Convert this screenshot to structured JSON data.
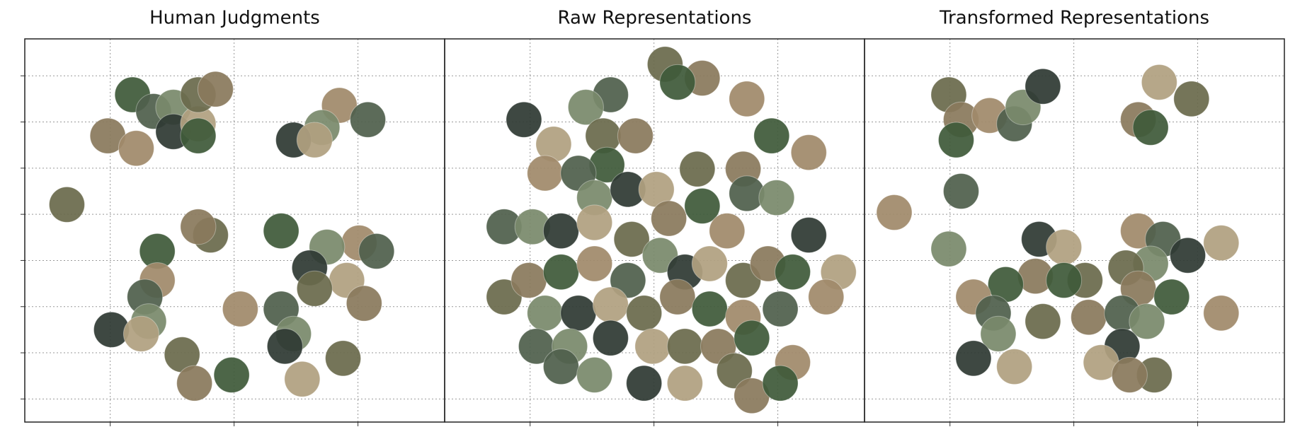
{
  "chart_data": [
    {
      "type": "scatter",
      "title": "Human Judgments",
      "xlim": [
        -0.69,
        2.7
      ],
      "ylim": [
        -0.5,
        7.8
      ],
      "xticks": [
        0,
        1,
        2
      ],
      "yticks": [
        0,
        1,
        2,
        3,
        4,
        5,
        6,
        7
      ],
      "grid": true,
      "colors": [
        "#6b6a4c",
        "#8a7a5c",
        "#3f5a3a",
        "#a08a6a",
        "#50604c",
        "#7a8a6c",
        "#2f3a34",
        "#b0a080"
      ],
      "x": [
        -0.35,
        -0.02,
        0.18,
        0.21,
        0.35,
        0.51,
        0.51,
        0.71,
        0.71,
        0.85,
        0.71,
        1.85,
        2.08,
        1.71,
        1.48,
        1.65,
        0.81,
        0.71,
        1.38,
        2.01,
        2.15,
        1.75,
        1.61,
        1.91,
        1.65,
        2.05,
        0.38,
        0.38,
        0.28,
        0.31,
        0.01,
        0.25,
        0.58,
        0.68,
        0.98,
        1.05,
        1.38,
        1.48,
        1.41,
        1.55,
        1.88
      ],
      "y": [
        4.21,
        5.7,
        6.59,
        5.43,
        6.23,
        6.32,
        5.79,
        5.96,
        6.59,
        6.71,
        5.7,
        6.36,
        6.05,
        5.88,
        5.61,
        5.61,
        3.55,
        3.73,
        3.64,
        3.38,
        3.2,
        3.29,
        2.84,
        2.57,
        2.39,
        2.07,
        3.2,
        2.57,
        2.21,
        1.68,
        1.5,
        1.41,
        0.96,
        0.34,
        0.52,
        1.95,
        1.95,
        1.41,
        1.14,
        0.43,
        0.88
      ]
    },
    {
      "type": "scatter",
      "title": "Raw Representations",
      "xlim": [
        -0.69,
        2.7
      ],
      "ylim": [
        -0.5,
        7.8
      ],
      "xticks": [
        0,
        1,
        2
      ],
      "yticks": [
        0,
        1,
        2,
        3,
        4,
        5,
        6,
        7
      ],
      "grid": true,
      "colors": [
        "#6b6a4c",
        "#8a7a5c",
        "#3f5a3a",
        "#a08a6a",
        "#50604c",
        "#7a8a6c",
        "#2f3a34",
        "#b0a080"
      ],
      "x": [
        1.09,
        1.39,
        1.19,
        1.75,
        0.65,
        0.45,
        -0.05,
        0.19,
        0.59,
        0.85,
        0.62,
        0.12,
        0.39,
        0.52,
        0.79,
        1.02,
        1.35,
        1.72,
        1.95,
        2.25,
        -0.21,
        0.02,
        0.25,
        0.52,
        0.82,
        1.12,
        1.39,
        1.59,
        1.75,
        1.99,
        2.25,
        2.49,
        -0.21,
        -0.01,
        0.25,
        0.52,
        0.79,
        1.05,
        1.25,
        1.45,
        1.72,
        1.92,
        2.12,
        2.39,
        2.02,
        0.12,
        0.39,
        0.65,
        0.92,
        1.19,
        1.45,
        1.72,
        0.05,
        0.32,
        0.65,
        0.99,
        1.25,
        1.52,
        1.79,
        2.12,
        0.25,
        0.52,
        0.92,
        1.25,
        1.65,
        1.79,
        2.02
      ],
      "y": [
        7.25,
        6.95,
        6.86,
        6.5,
        6.59,
        6.32,
        6.05,
        5.52,
        5.7,
        5.7,
        5.07,
        4.89,
        4.89,
        4.36,
        4.54,
        4.54,
        4.98,
        4.98,
        5.7,
        5.34,
        3.73,
        3.73,
        3.64,
        3.82,
        3.46,
        3.91,
        4.18,
        3.64,
        4.45,
        4.36,
        3.55,
        2.75,
        2.21,
        2.57,
        2.75,
        2.93,
        2.57,
        3.11,
        2.75,
        2.93,
        2.57,
        2.93,
        2.75,
        2.21,
        1.95,
        1.86,
        1.86,
        2.04,
        1.86,
        2.21,
        1.95,
        1.77,
        1.14,
        1.14,
        1.32,
        1.14,
        1.14,
        1.14,
        1.32,
        0.79,
        0.7,
        0.52,
        0.34,
        0.34,
        0.61,
        0.07,
        0.34
      ]
    },
    {
      "type": "scatter",
      "title": "Transformed Representations",
      "xlim": [
        -0.69,
        2.7
      ],
      "ylim": [
        -0.5,
        7.8
      ],
      "xticks": [
        0,
        1,
        2
      ],
      "yticks": [
        0,
        1,
        2,
        3,
        4,
        5,
        6,
        7
      ],
      "grid": true,
      "colors": [
        "#6b6a4c",
        "#8a7a5c",
        "#3f5a3a",
        "#a08a6a",
        "#50604c",
        "#7a8a6c",
        "#2f3a34",
        "#b0a080"
      ],
      "x": [
        -0.01,
        0.09,
        0.05,
        0.32,
        0.52,
        0.59,
        0.75,
        1.69,
        1.95,
        1.52,
        1.62,
        -0.45,
        0.09,
        -0.01,
        0.72,
        0.92,
        1.09,
        0.69,
        0.45,
        0.19,
        0.35,
        0.39,
        0.19,
        0.52,
        0.75,
        1.12,
        0.92,
        1.52,
        1.72,
        1.62,
        1.92,
        2.19,
        1.42,
        1.52,
        1.79,
        2.19,
        1.39,
        1.59,
        1.39,
        1.22,
        1.65,
        1.45
      ],
      "y": [
        6.59,
        6.05,
        5.61,
        6.14,
        5.96,
        6.32,
        6.77,
        6.86,
        6.5,
        6.05,
        5.88,
        4.04,
        4.5,
        3.25,
        3.46,
        3.29,
        2.57,
        2.66,
        2.48,
        2.21,
        1.86,
        1.41,
        0.88,
        0.7,
        1.68,
        1.77,
        2.57,
        3.64,
        3.46,
        2.93,
        3.11,
        3.38,
        2.84,
        2.39,
        2.21,
        1.86,
        1.86,
        1.68,
        1.14,
        0.79,
        0.52,
        0.52
      ]
    }
  ]
}
